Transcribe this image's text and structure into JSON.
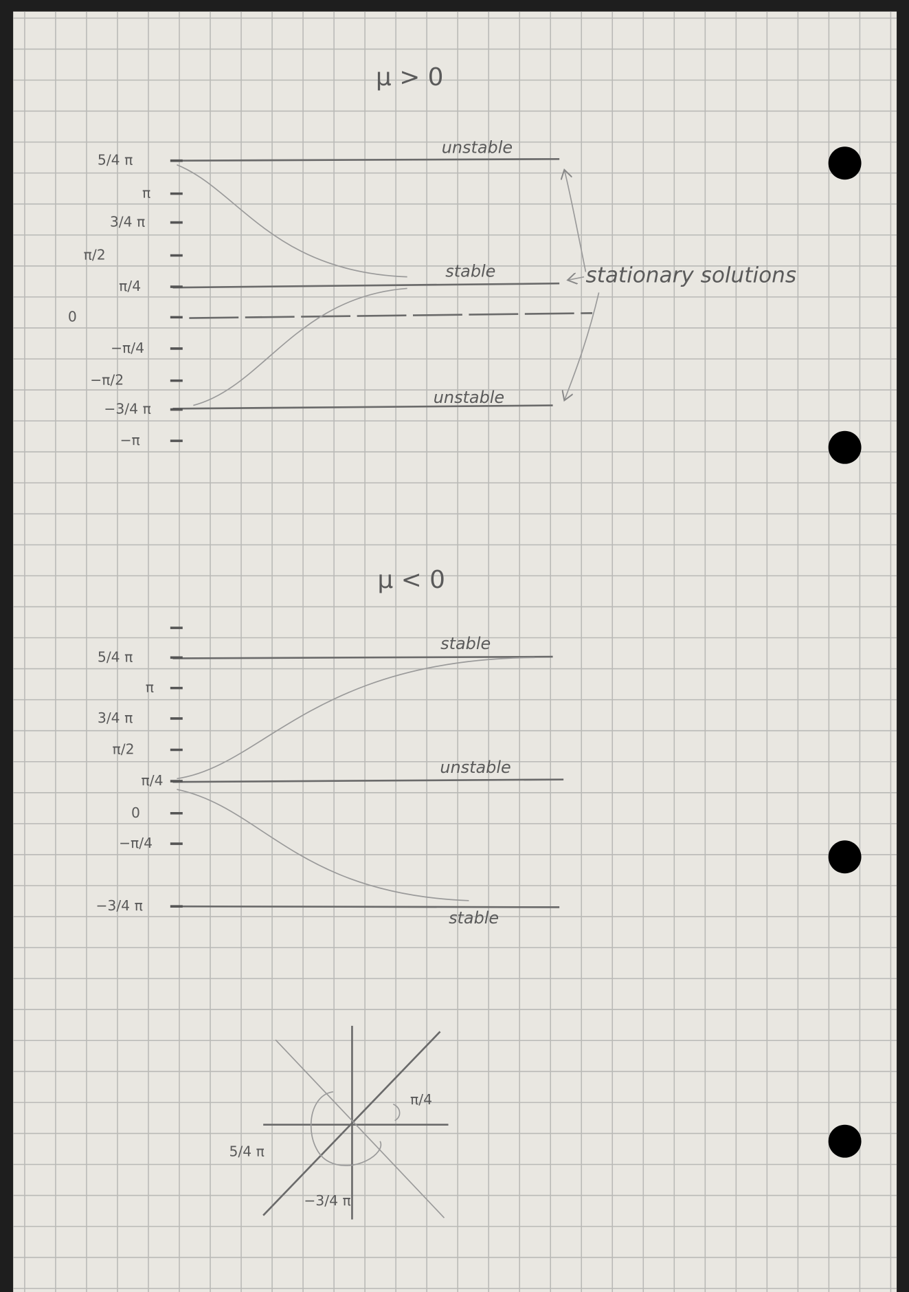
{
  "panels": [
    {
      "title": "μ > 0",
      "axis_labels": [
        "5/4 π",
        "π",
        "3/4 π",
        "π/2",
        "π/4",
        "0",
        "−π/4",
        "−π/2",
        "−3/4 π",
        "−π"
      ],
      "line_labels": [
        "unstable",
        "stable",
        "unstable"
      ]
    },
    {
      "title": "μ < 0",
      "axis_labels": [
        "5/4 π",
        "π",
        "3/4 π",
        "π/2",
        "π/4",
        "0",
        "−π/4",
        "−3/4 π"
      ],
      "line_labels": [
        "stable",
        "unstable",
        "stable"
      ]
    }
  ],
  "annotation": "stationary solutions",
  "angle_diagram": {
    "labels": [
      "π/4",
      "5/4 π",
      "−3/4 π"
    ]
  }
}
